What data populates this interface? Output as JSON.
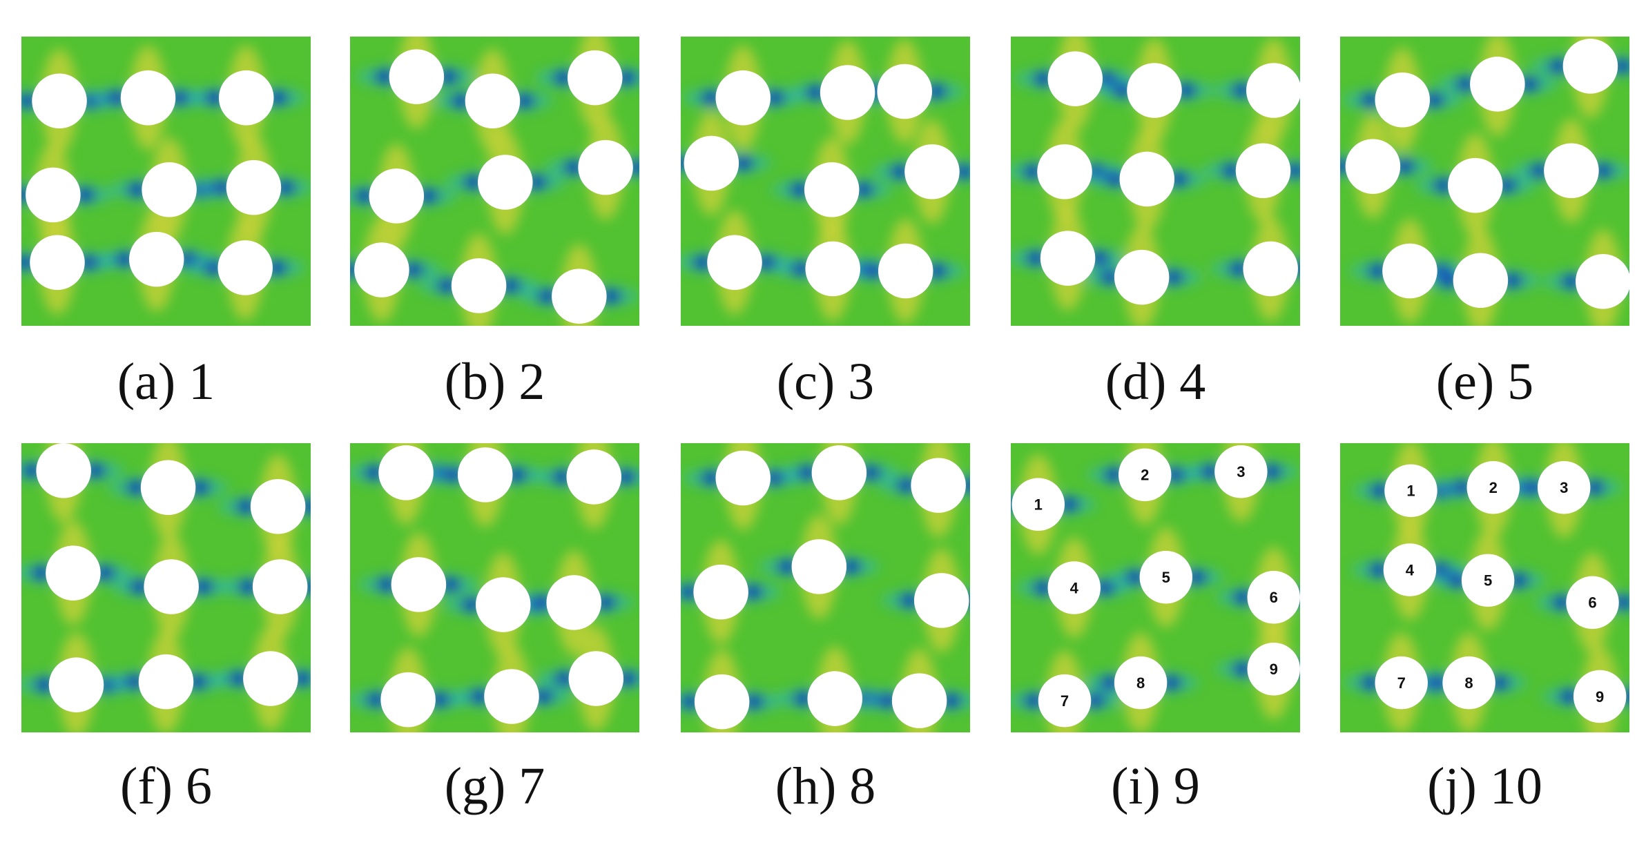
{
  "panels": [
    {
      "label": "(a) 1"
    },
    {
      "label": "(b) 2"
    },
    {
      "label": "(c) 3"
    },
    {
      "label": "(d) 4"
    },
    {
      "label": "(e) 5"
    },
    {
      "label": "(f) 6"
    },
    {
      "label": "(g) 7"
    },
    {
      "label": "(h) 8"
    },
    {
      "label": "(i) 9",
      "hole_labels": [
        "1",
        "2",
        "3",
        "4",
        "5",
        "6",
        "7",
        "8",
        "9"
      ]
    },
    {
      "label": "(j) 10",
      "hole_labels": [
        "1",
        "2",
        "3",
        "4",
        "5",
        "6",
        "7",
        "8",
        "9"
      ]
    }
  ]
}
